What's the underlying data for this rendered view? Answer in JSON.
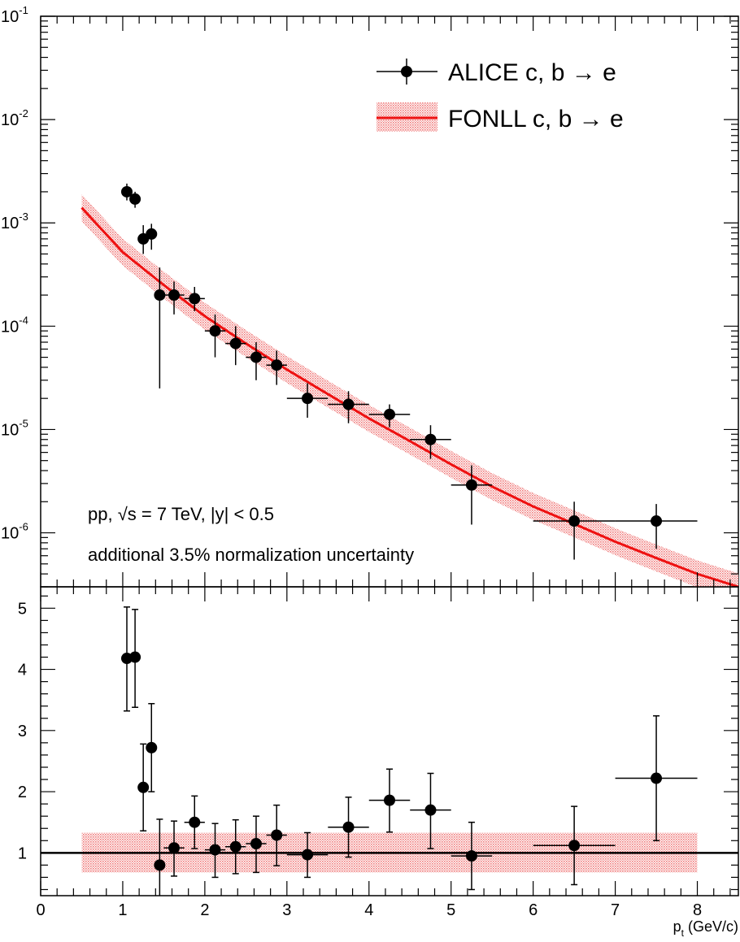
{
  "colors": {
    "data": "#000000",
    "model_line": "#ee1111",
    "model_band": "#f3a0a0"
  },
  "legend": {
    "data_label": "ALICE c, b → e",
    "model_label": "FONLL c, b → e"
  },
  "annotations": {
    "line1": "pp, √s = 7 TeV, |y| < 0.5",
    "line2": "additional 3.5% normalization uncertainty"
  },
  "chart_data": [
    {
      "type": "scatter",
      "panel": "spectrum",
      "y_scale": "log",
      "xlim": [
        0,
        8.5
      ],
      "ylim": [
        3e-07,
        0.1
      ],
      "y_ticks": [
        {
          "mantissa": "10",
          "exponent": "-1",
          "value": 0.1
        },
        {
          "mantissa": "10",
          "exponent": "-2",
          "value": 0.01
        },
        {
          "mantissa": "10",
          "exponent": "-3",
          "value": 0.001
        },
        {
          "mantissa": "10",
          "exponent": "-4",
          "value": 0.0001
        },
        {
          "mantissa": "10",
          "exponent": "-5",
          "value": 1e-05
        },
        {
          "mantissa": "10",
          "exponent": "-6",
          "value": 1e-06
        }
      ],
      "grid": false,
      "legend_position": "top-right",
      "series": [
        {
          "name": "ALICE c, b → e",
          "points": [
            {
              "x": 1.05,
              "xerr": 0.05,
              "y": 0.002,
              "ylo": 0.00165,
              "yhi": 0.0024
            },
            {
              "x": 1.15,
              "xerr": 0.05,
              "y": 0.0017,
              "ylo": 0.0014,
              "yhi": 0.002
            },
            {
              "x": 1.25,
              "xerr": 0.05,
              "y": 0.0007,
              "ylo": 0.0005,
              "yhi": 0.00095
            },
            {
              "x": 1.35,
              "xerr": 0.05,
              "y": 0.00078,
              "ylo": 0.00055,
              "yhi": 0.00098
            },
            {
              "x": 1.45,
              "xerr": 0.05,
              "y": 0.0002,
              "ylo": 2.5e-05,
              "yhi": 0.00037
            },
            {
              "x": 1.625,
              "xerr": 0.125,
              "y": 0.0002,
              "ylo": 0.00013,
              "yhi": 0.00027
            },
            {
              "x": 1.875,
              "xerr": 0.125,
              "y": 0.000185,
              "ylo": 0.00014,
              "yhi": 0.00024
            },
            {
              "x": 2.125,
              "xerr": 0.125,
              "y": 9e-05,
              "ylo": 5e-05,
              "yhi": 0.00013
            },
            {
              "x": 2.375,
              "xerr": 0.125,
              "y": 6.8e-05,
              "ylo": 4.2e-05,
              "yhi": 0.0001
            },
            {
              "x": 2.625,
              "xerr": 0.125,
              "y": 5e-05,
              "ylo": 3e-05,
              "yhi": 7e-05
            },
            {
              "x": 2.875,
              "xerr": 0.125,
              "y": 4.2e-05,
              "ylo": 2.7e-05,
              "yhi": 5.8e-05
            },
            {
              "x": 3.25,
              "xerr": 0.25,
              "y": 2e-05,
              "ylo": 1.3e-05,
              "yhi": 2.8e-05
            },
            {
              "x": 3.75,
              "xerr": 0.25,
              "y": 1.75e-05,
              "ylo": 1.15e-05,
              "yhi": 2.35e-05
            },
            {
              "x": 4.25,
              "xerr": 0.25,
              "y": 1.4e-05,
              "ylo": 1.05e-05,
              "yhi": 1.75e-05
            },
            {
              "x": 4.75,
              "xerr": 0.25,
              "y": 8e-06,
              "ylo": 5.2e-06,
              "yhi": 1.1e-05
            },
            {
              "x": 5.25,
              "xerr": 0.25,
              "y": 2.9e-06,
              "ylo": 1.2e-06,
              "yhi": 4.5e-06
            },
            {
              "x": 6.5,
              "xerr": 0.5,
              "y": 1.3e-06,
              "ylo": 5.5e-07,
              "yhi": 2e-06
            },
            {
              "x": 7.5,
              "xerr": 0.5,
              "y": 1.3e-06,
              "ylo": 7e-07,
              "yhi": 1.9e-06
            }
          ]
        },
        {
          "name": "FONLL c, b → e",
          "kind": "line-with-band",
          "x": [
            0.5,
            1.0,
            1.5,
            2.0,
            2.5,
            3.0,
            3.5,
            4.0,
            4.5,
            5.0,
            5.5,
            6.0,
            6.5,
            7.0,
            7.5,
            8.0,
            8.5
          ],
          "y": [
            0.0014,
            0.00052,
            0.00025,
            0.000125,
            6.8e-05,
            3.8e-05,
            2.2e-05,
            1.28e-05,
            7.7e-06,
            4.6e-06,
            2.8e-06,
            1.8e-06,
            1.22e-06,
            8.2e-07,
            5.7e-07,
            4e-07,
            3e-07
          ],
          "band_factor": 1.35
        }
      ]
    },
    {
      "type": "scatter",
      "panel": "ratio",
      "xlabel": "p_t (GeV/c)",
      "xlim": [
        0,
        8.5
      ],
      "ylim": [
        0.3,
        5.35
      ],
      "x_ticks": [
        0,
        1,
        2,
        3,
        4,
        5,
        6,
        7,
        8
      ],
      "y_ticks": [
        1,
        2,
        3,
        4,
        5
      ],
      "grid": false,
      "reference_line": 1,
      "uncertainty_band": {
        "x": [
          0.5,
          8.0
        ],
        "ylo": 0.68,
        "yhi": 1.33
      },
      "series": [
        {
          "points": [
            {
              "x": 1.05,
              "xerr": 0.05,
              "y": 4.18,
              "ylo": 3.32,
              "yhi": 5.02
            },
            {
              "x": 1.15,
              "xerr": 0.05,
              "y": 4.2,
              "ylo": 3.38,
              "yhi": 4.98
            },
            {
              "x": 1.25,
              "xerr": 0.05,
              "y": 2.07,
              "ylo": 1.36,
              "yhi": 2.78
            },
            {
              "x": 1.35,
              "xerr": 0.05,
              "y": 2.72,
              "ylo": 2.0,
              "yhi": 3.44
            },
            {
              "x": 1.45,
              "xerr": 0.05,
              "y": 0.8,
              "ylo": 0.12,
              "yhi": 1.55
            },
            {
              "x": 1.625,
              "xerr": 0.125,
              "y": 1.08,
              "ylo": 0.62,
              "yhi": 1.52
            },
            {
              "x": 1.875,
              "xerr": 0.125,
              "y": 1.5,
              "ylo": 1.07,
              "yhi": 1.93
            },
            {
              "x": 2.125,
              "xerr": 0.125,
              "y": 1.05,
              "ylo": 0.6,
              "yhi": 1.48
            },
            {
              "x": 2.375,
              "xerr": 0.125,
              "y": 1.1,
              "ylo": 0.66,
              "yhi": 1.54
            },
            {
              "x": 2.625,
              "xerr": 0.125,
              "y": 1.15,
              "ylo": 0.68,
              "yhi": 1.6
            },
            {
              "x": 2.875,
              "xerr": 0.125,
              "y": 1.29,
              "ylo": 0.79,
              "yhi": 1.78
            },
            {
              "x": 3.25,
              "xerr": 0.25,
              "y": 0.97,
              "ylo": 0.6,
              "yhi": 1.33
            },
            {
              "x": 3.75,
              "xerr": 0.25,
              "y": 1.42,
              "ylo": 0.93,
              "yhi": 1.91
            },
            {
              "x": 4.25,
              "xerr": 0.25,
              "y": 1.86,
              "ylo": 1.34,
              "yhi": 2.37
            },
            {
              "x": 4.75,
              "xerr": 0.25,
              "y": 1.7,
              "ylo": 1.07,
              "yhi": 2.3
            },
            {
              "x": 5.25,
              "xerr": 0.25,
              "y": 0.95,
              "ylo": 0.4,
              "yhi": 1.5
            },
            {
              "x": 6.5,
              "xerr": 0.5,
              "y": 1.12,
              "ylo": 0.48,
              "yhi": 1.76
            },
            {
              "x": 7.5,
              "xerr": 0.5,
              "y": 2.22,
              "ylo": 1.2,
              "yhi": 3.24
            }
          ]
        }
      ]
    }
  ]
}
